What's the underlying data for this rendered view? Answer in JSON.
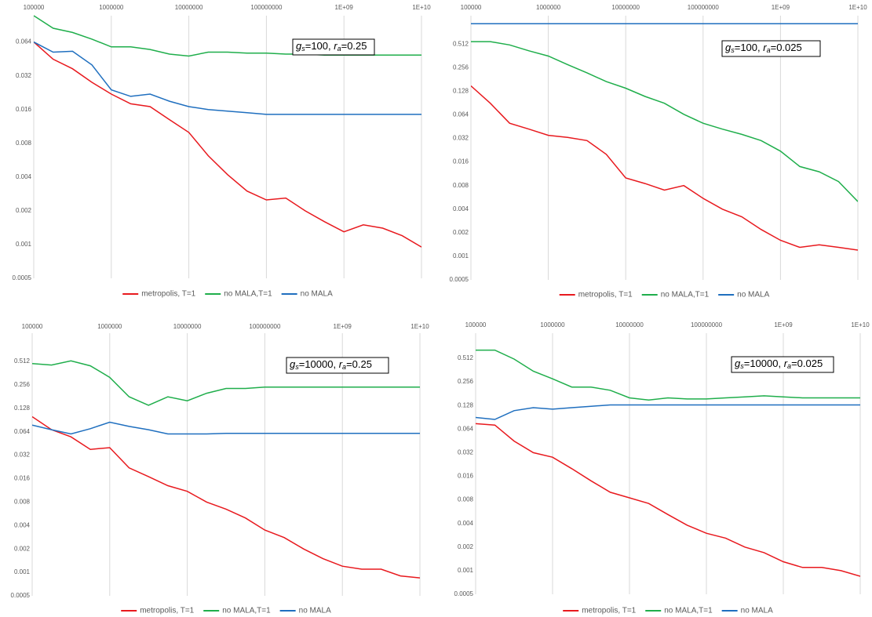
{
  "chart_data": [
    {
      "type": "line",
      "log_x": true,
      "log_y": true,
      "xgrid": true,
      "legend": "bottom",
      "annotation": [
        "g",
        "s",
        "=100, ",
        "r",
        "a",
        "=0.25"
      ],
      "x": [
        100000,
        177828,
        316228,
        562341,
        1000000,
        1778279,
        3162278,
        5623413,
        10000000,
        17782794,
        31622777,
        56234133,
        100000000,
        177827941,
        316227766,
        562341325,
        1000000000,
        1778279410,
        3162277660,
        5623413252,
        10000000000
      ],
      "xlim": [
        100000,
        10000000000
      ],
      "xticks": [
        100000,
        1000000,
        10000000,
        100000000,
        {
          "value": 1000000000,
          "label": "1E+09"
        },
        {
          "value": 10000000000,
          "label": "1E+10"
        }
      ],
      "ylim": [
        0.0005,
        0.11
      ],
      "yticks": [
        0.0005,
        0.001,
        0.002,
        0.004,
        0.008,
        0.016,
        0.032,
        0.064
      ],
      "series": [
        {
          "name": "metropolis, T=1",
          "color": "#e8191e",
          "values": [
            0.064,
            0.045,
            0.037,
            0.028,
            0.022,
            0.018,
            0.017,
            0.013,
            0.01,
            0.0062,
            0.0042,
            0.003,
            0.0025,
            0.0026,
            0.002,
            0.0016,
            0.0013,
            0.0015,
            0.0014,
            0.0012,
            0.00095
          ]
        },
        {
          "name": "no MALA,T=1",
          "color": "#1fae4b",
          "values": [
            0.11,
            0.085,
            0.078,
            0.068,
            0.058,
            0.058,
            0.055,
            0.05,
            0.048,
            0.052,
            0.052,
            0.051,
            0.051,
            0.05,
            0.05,
            0.049,
            0.049,
            0.049,
            0.049,
            0.049,
            0.049
          ]
        },
        {
          "name": "no MALA",
          "color": "#1f6fbf",
          "values": [
            0.064,
            0.052,
            0.053,
            0.04,
            0.024,
            0.021,
            0.022,
            0.019,
            0.017,
            0.016,
            0.0155,
            0.015,
            0.0145,
            0.0145,
            0.0145,
            0.0145,
            0.0145,
            0.0145,
            0.0145,
            0.0145,
            0.0145
          ]
        }
      ]
    },
    {
      "type": "line",
      "log_x": true,
      "log_y": true,
      "xgrid": true,
      "legend": "bottom",
      "annotation": [
        "g",
        "s",
        "=100, ",
        "r",
        "a",
        "=0.025"
      ],
      "x": [
        100000,
        177828,
        316228,
        562341,
        1000000,
        1778279,
        3162278,
        5623413,
        10000000,
        17782794,
        31622777,
        56234133,
        100000000,
        177827941,
        316227766,
        562341325,
        1000000000,
        1778279410,
        3162277660,
        5623413252,
        10000000000
      ],
      "xlim": [
        100000,
        10000000000
      ],
      "xticks": [
        100000,
        1000000,
        10000000,
        100000000,
        {
          "value": 1000000000,
          "label": "1E+09"
        },
        {
          "value": 10000000000,
          "label": "1E+10"
        }
      ],
      "ylim": [
        0.0005,
        1.18
      ],
      "yticks": [
        0.0005,
        0.001,
        0.002,
        0.004,
        0.008,
        0.016,
        0.032,
        0.064,
        0.128,
        0.256,
        0.512
      ],
      "series": [
        {
          "name": "metropolis, T=1",
          "color": "#e8191e",
          "values": [
            0.15,
            0.09,
            0.05,
            0.042,
            0.035,
            0.033,
            0.03,
            0.02,
            0.01,
            0.0085,
            0.007,
            0.008,
            0.0055,
            0.004,
            0.0032,
            0.0022,
            0.0016,
            0.0013,
            0.0014,
            0.0013,
            0.0012
          ]
        },
        {
          "name": "no MALA,T=1",
          "color": "#1fae4b",
          "values": [
            0.55,
            0.55,
            0.5,
            0.42,
            0.36,
            0.28,
            0.22,
            0.17,
            0.14,
            0.11,
            0.09,
            0.065,
            0.05,
            0.042,
            0.036,
            0.03,
            0.022,
            0.014,
            0.012,
            0.009,
            0.005
          ]
        },
        {
          "name": "no MALA",
          "color": "#1f6fbf",
          "values": [
            0.93,
            0.93,
            0.93,
            0.93,
            0.93,
            0.93,
            0.93,
            0.93,
            0.93,
            0.93,
            0.93,
            0.93,
            0.93,
            0.93,
            0.93,
            0.93,
            0.93,
            0.93,
            0.93,
            0.93,
            0.93
          ]
        }
      ]
    },
    {
      "type": "line",
      "log_x": true,
      "log_y": true,
      "xgrid": true,
      "legend": "bottom",
      "annotation": [
        "g",
        "s",
        "=10000, ",
        "r",
        "a",
        "=0.25"
      ],
      "x": [
        100000,
        177828,
        316228,
        562341,
        1000000,
        1778279,
        3162278,
        5623413,
        10000000,
        17782794,
        31622777,
        56234133,
        100000000,
        177827941,
        316227766,
        562341325,
        1000000000,
        1778279410,
        3162277660,
        5623413252,
        10000000000
      ],
      "xlim": [
        100000,
        10000000000
      ],
      "xticks": [
        100000,
        1000000,
        10000000,
        100000000,
        {
          "value": 1000000000,
          "label": "1E+09"
        },
        {
          "value": 10000000000,
          "label": "1E+10"
        }
      ],
      "ylim": [
        0.0005,
        1.18
      ],
      "yticks": [
        0.0005,
        0.001,
        0.002,
        0.004,
        0.008,
        0.016,
        0.032,
        0.064,
        0.128,
        0.256,
        0.512
      ],
      "series": [
        {
          "name": "metropolis, T=1",
          "color": "#e8191e",
          "values": [
            0.1,
            0.068,
            0.055,
            0.038,
            0.04,
            0.022,
            0.017,
            0.013,
            0.011,
            0.008,
            0.0065,
            0.005,
            0.0035,
            0.0028,
            0.002,
            0.0015,
            0.0012,
            0.0011,
            0.0011,
            0.0009,
            0.00085
          ]
        },
        {
          "name": "no MALA,T=1",
          "color": "#1fae4b",
          "values": [
            0.48,
            0.46,
            0.52,
            0.45,
            0.32,
            0.18,
            0.14,
            0.18,
            0.16,
            0.2,
            0.23,
            0.23,
            0.24,
            0.24,
            0.24,
            0.24,
            0.24,
            0.24,
            0.24,
            0.24,
            0.24
          ]
        },
        {
          "name": "no MALA",
          "color": "#1f6fbf",
          "values": [
            0.078,
            0.068,
            0.06,
            0.07,
            0.085,
            0.075,
            0.068,
            0.06,
            0.06,
            0.06,
            0.061,
            0.061,
            0.061,
            0.061,
            0.061,
            0.061,
            0.061,
            0.061,
            0.061,
            0.061,
            0.061
          ]
        }
      ]
    },
    {
      "type": "line",
      "log_x": true,
      "log_y": true,
      "xgrid": true,
      "legend": "bottom",
      "annotation": [
        "g",
        "s",
        "=10000, ",
        "r",
        "a",
        "=0.025"
      ],
      "x": [
        100000,
        177828,
        316228,
        562341,
        1000000,
        1778279,
        3162278,
        5623413,
        10000000,
        17782794,
        31622777,
        56234133,
        100000000,
        177827941,
        316227766,
        562341325,
        1000000000,
        1778279410,
        3162277660,
        5623413252,
        10000000000
      ],
      "xlim": [
        100000,
        10000000000
      ],
      "xticks": [
        100000,
        1000000,
        10000000,
        100000000,
        {
          "value": 1000000000,
          "label": "1E+09"
        },
        {
          "value": 10000000000,
          "label": "1E+10"
        }
      ],
      "ylim": [
        0.0005,
        1.07
      ],
      "yticks": [
        0.0005,
        0.001,
        0.002,
        0.004,
        0.008,
        0.016,
        0.032,
        0.064,
        0.128,
        0.256,
        0.512
      ],
      "series": [
        {
          "name": "metropolis, T=1",
          "color": "#e8191e",
          "values": [
            0.075,
            0.072,
            0.045,
            0.032,
            0.028,
            0.02,
            0.014,
            0.01,
            0.0085,
            0.0072,
            0.0052,
            0.0038,
            0.003,
            0.0026,
            0.002,
            0.0017,
            0.0013,
            0.0011,
            0.0011,
            0.001,
            0.00085
          ]
        },
        {
          "name": "no MALA,T=1",
          "color": "#1fae4b",
          "values": [
            0.65,
            0.65,
            0.5,
            0.35,
            0.28,
            0.22,
            0.22,
            0.2,
            0.16,
            0.15,
            0.16,
            0.155,
            0.155,
            0.16,
            0.165,
            0.17,
            0.165,
            0.16,
            0.16,
            0.16,
            0.16
          ]
        },
        {
          "name": "no MALA",
          "color": "#1f6fbf",
          "values": [
            0.09,
            0.085,
            0.11,
            0.12,
            0.115,
            0.12,
            0.125,
            0.13,
            0.13,
            0.13,
            0.13,
            0.13,
            0.13,
            0.13,
            0.13,
            0.13,
            0.13,
            0.13,
            0.13,
            0.13,
            0.13
          ]
        }
      ]
    }
  ]
}
